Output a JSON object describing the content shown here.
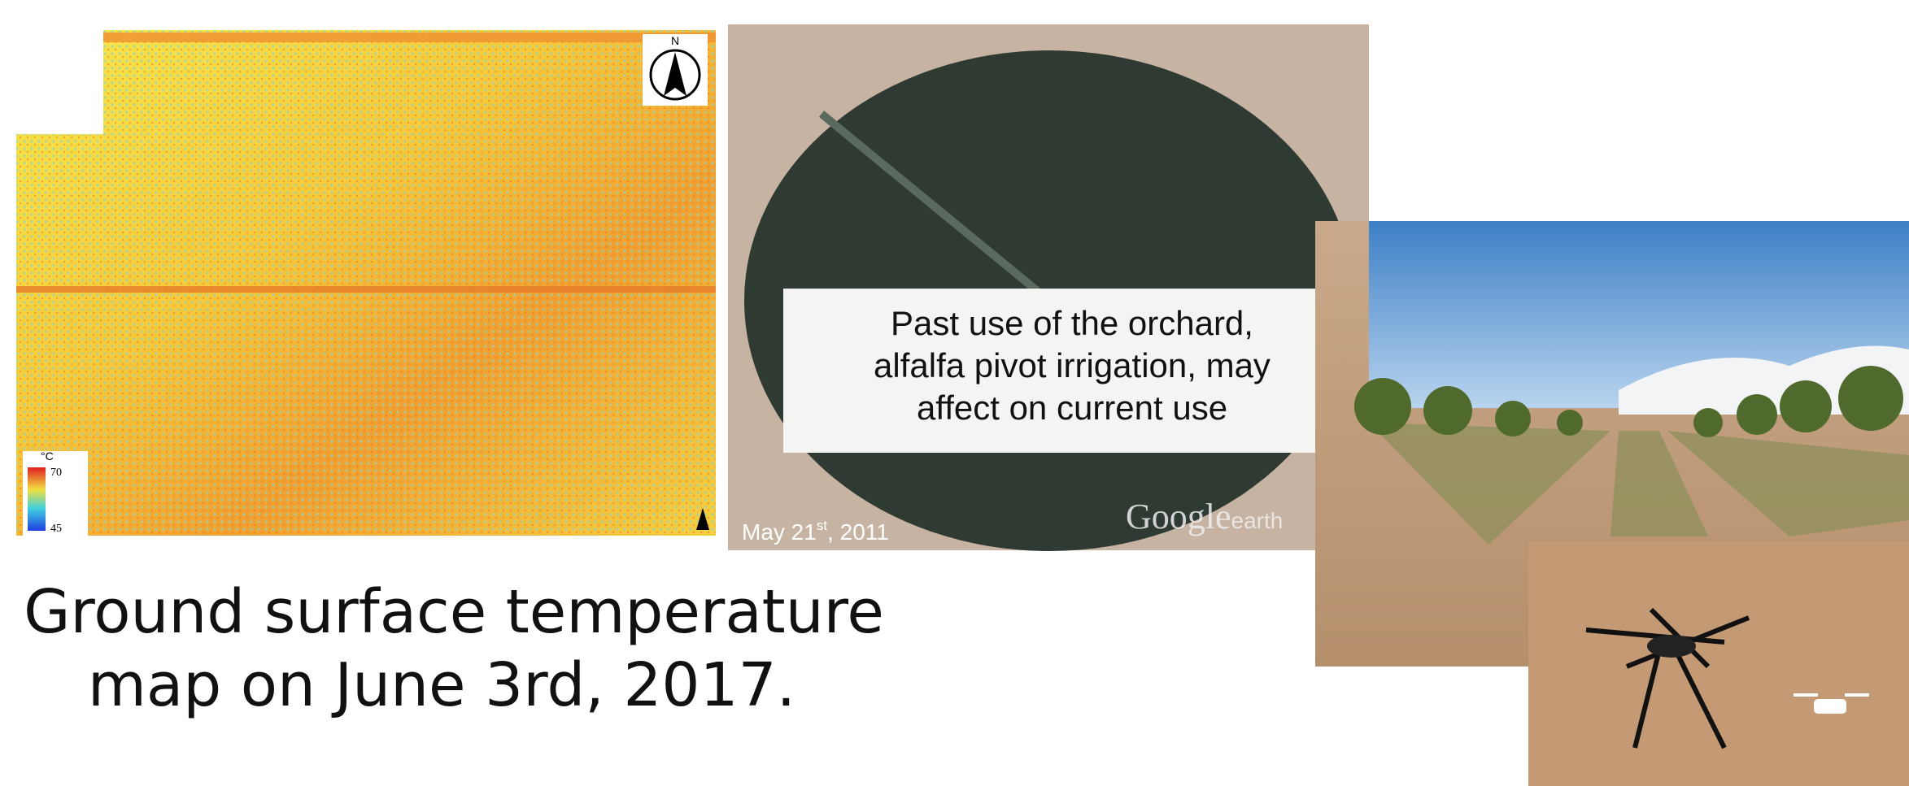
{
  "thermal_map": {
    "north_label": "N",
    "legend_unit": "°C",
    "legend_max": 70,
    "legend_min": 45
  },
  "satellite_image": {
    "caption": [
      "Past use of the orchard,",
      "alfalfa pivot irrigation, may",
      "affect on current use"
    ],
    "date": "May 21",
    "date_suffix": "st",
    "date_year": ", 2011",
    "watermark": "Google",
    "watermark_suffix": "earth"
  },
  "caption": [
    "Ground surface temperature",
    "map on June 3rd, 2017."
  ]
}
